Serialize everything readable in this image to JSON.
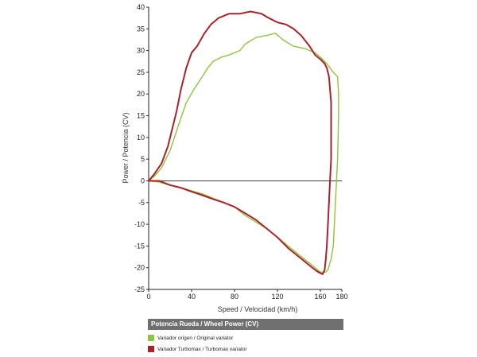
{
  "chart_data": {
    "type": "line",
    "title": "",
    "xlabel": "Speed / Velocidad (km/h)",
    "ylabel": "Power / Potencia (CV)",
    "xlim": [
      0,
      180
    ],
    "ylim": [
      -25,
      40
    ],
    "x_ticks": [
      0,
      40,
      80,
      120,
      160,
      180
    ],
    "y_ticks": [
      40,
      35,
      30,
      25,
      20,
      15,
      10,
      5,
      0,
      -5,
      -10,
      -15,
      -20,
      -25
    ],
    "grid": false,
    "legend_title": "Potencia Rueda / Wheel Power (CV)",
    "legend_position": "bottom",
    "series": [
      {
        "name": "Variador origen / Original variator",
        "color": "#8cc63f",
        "points": [
          [
            0,
            0
          ],
          [
            5,
            1
          ],
          [
            12,
            3
          ],
          [
            20,
            7
          ],
          [
            28,
            13
          ],
          [
            35,
            18
          ],
          [
            42,
            21
          ],
          [
            50,
            24
          ],
          [
            55,
            26
          ],
          [
            60,
            27.5
          ],
          [
            68,
            28.5
          ],
          [
            75,
            29
          ],
          [
            80,
            29.5
          ],
          [
            85,
            30
          ],
          [
            90,
            31.5
          ],
          [
            100,
            33
          ],
          [
            110,
            33.5
          ],
          [
            118,
            34
          ],
          [
            125,
            32.5
          ],
          [
            135,
            31
          ],
          [
            145,
            30.5
          ],
          [
            155,
            29.5
          ],
          [
            160,
            28.5
          ],
          [
            166,
            27
          ],
          [
            172,
            25
          ],
          [
            176,
            24
          ],
          [
            177,
            20
          ],
          [
            177,
            15
          ],
          [
            176.5,
            10
          ],
          [
            176,
            5
          ],
          [
            175,
            0
          ],
          [
            174,
            -5
          ],
          [
            173,
            -10
          ],
          [
            172,
            -15
          ],
          [
            170,
            -18
          ],
          [
            167,
            -20.5
          ],
          [
            165,
            -21
          ],
          [
            160,
            -21
          ],
          [
            155,
            -20
          ],
          [
            150,
            -19
          ],
          [
            140,
            -17
          ],
          [
            130,
            -15
          ],
          [
            120,
            -13
          ],
          [
            110,
            -11
          ],
          [
            100,
            -9.5
          ],
          [
            90,
            -8
          ],
          [
            80,
            -6
          ],
          [
            70,
            -5
          ],
          [
            60,
            -4
          ],
          [
            50,
            -3
          ],
          [
            40,
            -2.3
          ],
          [
            30,
            -1.5
          ],
          [
            20,
            -1
          ],
          [
            10,
            -0.3
          ],
          [
            0,
            0
          ]
        ]
      },
      {
        "name": "Variador Turbomax  / Turbomax variator",
        "color": "#a8232a",
        "points": [
          [
            0,
            0
          ],
          [
            5,
            1.5
          ],
          [
            12,
            4
          ],
          [
            18,
            8
          ],
          [
            22,
            12
          ],
          [
            26,
            16
          ],
          [
            30,
            21
          ],
          [
            35,
            26
          ],
          [
            40,
            29.5
          ],
          [
            45,
            31
          ],
          [
            52,
            34
          ],
          [
            58,
            36
          ],
          [
            65,
            37.5
          ],
          [
            75,
            38.5
          ],
          [
            85,
            38.5
          ],
          [
            95,
            39
          ],
          [
            105,
            38.5
          ],
          [
            112,
            37.5
          ],
          [
            120,
            36.5
          ],
          [
            128,
            36
          ],
          [
            135,
            35
          ],
          [
            142,
            33.5
          ],
          [
            150,
            31
          ],
          [
            155,
            29
          ],
          [
            160,
            28
          ],
          [
            164,
            27
          ],
          [
            166,
            26
          ],
          [
            168,
            24
          ],
          [
            170,
            18
          ],
          [
            170,
            10
          ],
          [
            170,
            5
          ],
          [
            169,
            0
          ],
          [
            168,
            -5
          ],
          [
            167,
            -10
          ],
          [
            166,
            -15
          ],
          [
            165,
            -18
          ],
          [
            164,
            -20.5
          ],
          [
            162,
            -21.5
          ],
          [
            158,
            -21
          ],
          [
            155,
            -20.5
          ],
          [
            150,
            -19.5
          ],
          [
            140,
            -17.5
          ],
          [
            130,
            -15.5
          ],
          [
            120,
            -13
          ],
          [
            110,
            -11
          ],
          [
            100,
            -9
          ],
          [
            90,
            -7.5
          ],
          [
            80,
            -6
          ],
          [
            70,
            -5
          ],
          [
            60,
            -4.2
          ],
          [
            50,
            -3.3
          ],
          [
            40,
            -2.5
          ],
          [
            30,
            -1.6
          ],
          [
            20,
            -1
          ],
          [
            10,
            0
          ],
          [
            0,
            0
          ]
        ]
      }
    ]
  }
}
